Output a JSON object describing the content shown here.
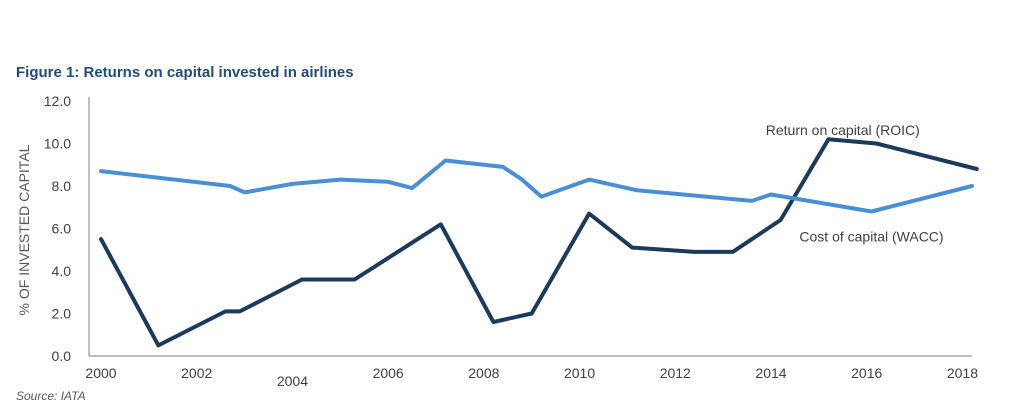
{
  "figure_title": "Figure 1: Returns on capital invested in airlines",
  "source": "Source: IATA",
  "colors": {
    "roic": "#1b3a5c",
    "wacc": "#4a8fd4",
    "axis": "#7f7f7f"
  },
  "chart_data": {
    "type": "line",
    "title": "Figure 1: Returns on capital invested in airlines",
    "xlabel": "",
    "ylabel": "% OF INVESTED CAPITAL",
    "xlim": [
      2000,
      2018.2
    ],
    "ylim": [
      0,
      12
    ],
    "grid": false,
    "x_ticks": [
      {
        "value": 2000,
        "label": "2000",
        "dy": 0
      },
      {
        "value": 2002,
        "label": "2002",
        "dy": 0
      },
      {
        "value": 2004,
        "label": "2004",
        "dy": 8
      },
      {
        "value": 2006,
        "label": "2006",
        "dy": 0
      },
      {
        "value": 2008,
        "label": "2008",
        "dy": 0
      },
      {
        "value": 2010,
        "label": "2010",
        "dy": 0
      },
      {
        "value": 2012,
        "label": "2012",
        "dy": 0
      },
      {
        "value": 2014,
        "label": "2014",
        "dy": 0
      },
      {
        "value": 2016,
        "label": "2016",
        "dy": 0
      },
      {
        "value": 2018,
        "label": "2018",
        "dy": 0
      }
    ],
    "y_ticks": [
      {
        "value": 0,
        "label": "0.0"
      },
      {
        "value": 2,
        "label": "2.0"
      },
      {
        "value": 4,
        "label": "4.0"
      },
      {
        "value": 6,
        "label": "6.0"
      },
      {
        "value": 8,
        "label": "8.0"
      },
      {
        "value": 10,
        "label": "10.0"
      },
      {
        "value": 12,
        "label": "12.0"
      }
    ],
    "series": [
      {
        "key": "roic",
        "name": "Return on capital (ROIC)",
        "label_anchor": {
          "x": 2015.5,
          "y": 10.4
        },
        "points": [
          [
            2000,
            5.5
          ],
          [
            2001.2,
            0.5
          ],
          [
            2002.6,
            2.1
          ],
          [
            2002.9,
            2.1
          ],
          [
            2004.2,
            3.6
          ],
          [
            2005.3,
            3.6
          ],
          [
            2007.1,
            6.2
          ],
          [
            2008.2,
            1.6
          ],
          [
            2009,
            2.0
          ],
          [
            2010.2,
            6.7
          ],
          [
            2011.1,
            5.1
          ],
          [
            2012.4,
            4.9
          ],
          [
            2013.2,
            4.9
          ],
          [
            2014.2,
            6.4
          ],
          [
            2015.2,
            10.2
          ],
          [
            2016.2,
            10.0
          ],
          [
            2018.3,
            8.8
          ]
        ]
      },
      {
        "key": "wacc",
        "name": "Cost of capital (WACC)",
        "label_anchor": {
          "x": 2016.1,
          "y": 5.4
        },
        "points": [
          [
            2000,
            8.7
          ],
          [
            2002.7,
            8.0
          ],
          [
            2003,
            7.7
          ],
          [
            2004,
            8.1
          ],
          [
            2005,
            8.3
          ],
          [
            2006,
            8.2
          ],
          [
            2006.5,
            7.9
          ],
          [
            2007.2,
            9.2
          ],
          [
            2008.4,
            8.9
          ],
          [
            2008.8,
            8.3
          ],
          [
            2009.2,
            7.5
          ],
          [
            2010.2,
            8.3
          ],
          [
            2011.2,
            7.8
          ],
          [
            2013.6,
            7.3
          ],
          [
            2014,
            7.6
          ],
          [
            2016.1,
            6.8
          ],
          [
            2018.2,
            8.0
          ]
        ]
      }
    ]
  }
}
